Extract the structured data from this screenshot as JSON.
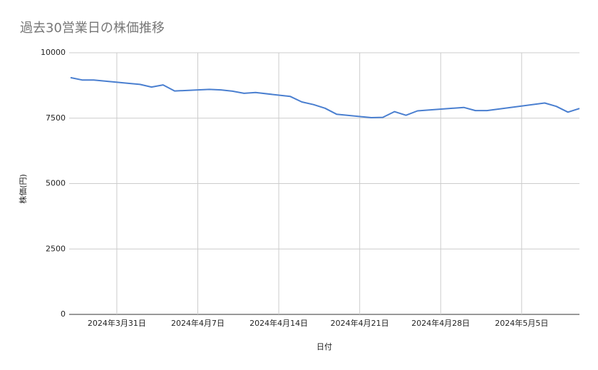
{
  "chart_data": {
    "type": "line",
    "title": "過去30営業日の株価推移",
    "x_label": "日付",
    "y_label": "株価(円)",
    "x": [
      "2024-03-27",
      "2024-03-28",
      "2024-03-29",
      "2024-04-01",
      "2024-04-02",
      "2024-04-03",
      "2024-04-04",
      "2024-04-05",
      "2024-04-08",
      "2024-04-09",
      "2024-04-10",
      "2024-04-11",
      "2024-04-12",
      "2024-04-15",
      "2024-04-16",
      "2024-04-17",
      "2024-04-18",
      "2024-04-19",
      "2024-04-22",
      "2024-04-23",
      "2024-04-24",
      "2024-04-25",
      "2024-04-26",
      "2024-04-30",
      "2024-05-01",
      "2024-05-02",
      "2024-05-07",
      "2024-05-08",
      "2024-05-09",
      "2024-05-10"
    ],
    "series": [
      {
        "color": "#4a7fd0",
        "values": [
          9050,
          8960,
          8960,
          8830,
          8790,
          8690,
          8770,
          8540,
          8600,
          8580,
          8530,
          8450,
          8480,
          8330,
          8120,
          8020,
          7880,
          7650,
          7520,
          7530,
          7750,
          7610,
          7780,
          7910,
          7790,
          7790,
          8080,
          7950,
          7730,
          7870
        ]
      }
    ],
    "xlim": [
      "2024-03-27",
      "2024-05-10"
    ],
    "xticks": [
      {
        "value": "2024-03-31",
        "label": "2024年3月31日"
      },
      {
        "value": "2024-04-07",
        "label": "2024年4月7日"
      },
      {
        "value": "2024-04-14",
        "label": "2024年4月14日"
      },
      {
        "value": "2024-04-21",
        "label": "2024年4月21日"
      },
      {
        "value": "2024-04-28",
        "label": "2024年4月28日"
      },
      {
        "value": "2024-05-05",
        "label": "2024年5月5日"
      }
    ],
    "ylim": [
      0,
      10000
    ],
    "yticks": [
      0,
      2500,
      5000,
      7500,
      10000
    ],
    "grid": true
  }
}
